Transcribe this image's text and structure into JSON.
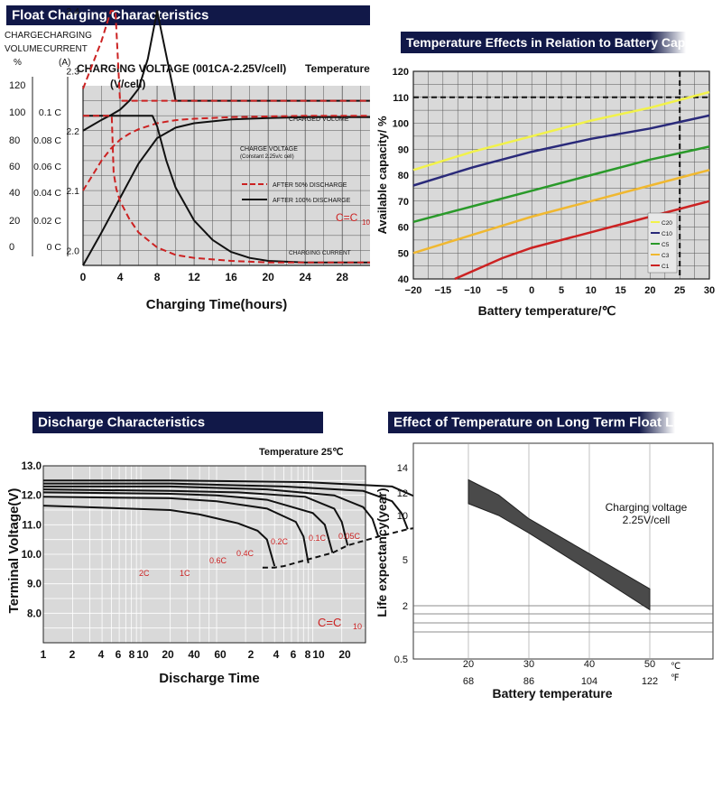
{
  "colors": {
    "header_bg": "#111848",
    "header_text": "#ffffff",
    "plot_bg": "#d9d9d9",
    "grid": "#555555",
    "red": "#cc2222",
    "black": "#111111"
  },
  "chart_data": [
    {
      "id": "float",
      "type": "line",
      "title": "Float Charging Characteristics",
      "xlabel": "Charging  Time(hours)",
      "xticks": [
        "0",
        "4",
        "8",
        "12",
        "16",
        "20",
        "24",
        "28"
      ],
      "xlim": [
        0,
        31
      ],
      "col1_header": [
        "CHARGE",
        "VOLUME",
        "%"
      ],
      "col1_ticks": [
        "120",
        "100",
        "80",
        "60",
        "40",
        "20",
        "0"
      ],
      "col2_header": [
        "CHARGING",
        "CURRENT",
        "(A)"
      ],
      "col2_ticks": [
        "0.1 C",
        "0.08 C",
        "0.06 C",
        "0.04 C",
        "0.02 C",
        "0 C"
      ],
      "col3_ticks": [
        "2.4",
        "2.3",
        "2.2",
        "2.1",
        "2.0"
      ],
      "voltage_title": "CHARGING VOLTAGE  (001CA-2.25V/cell)",
      "voltage_unit": "(V/cell)",
      "temperature_label": "Temperature",
      "labels": {
        "charged_volume": "CHARGED VOLUME",
        "charge_voltage": "CHARGE VOLTAGE",
        "charge_voltage_sub": "(Constant 2.25v/c cell)",
        "charging_current": "CHARGING CURRENT",
        "formula": "C=C",
        "formula_sub": "10"
      },
      "legend": [
        {
          "name": "AFTER 50% DISCHARGE",
          "style": "dashed",
          "color": "#cc2222"
        },
        {
          "name": "AFTER 100% DISCHARGE",
          "style": "solid",
          "color": "#111111"
        }
      ],
      "units": "curves in hours vs. charge volume (%) / voltage (V/cell)",
      "series": [
        {
          "name": "charged volume (100% discharge)",
          "style": "solid",
          "x": [
            0,
            2,
            4,
            6,
            8,
            10,
            12,
            16,
            20,
            24,
            28,
            31
          ],
          "y": [
            0,
            22,
            45,
            68,
            85,
            92,
            95,
            97.5,
            98.5,
            99,
            99,
            99
          ]
        },
        {
          "name": "charged volume (50% discharge)",
          "style": "dashed",
          "x": [
            0,
            1,
            2,
            3,
            4,
            5,
            6,
            8,
            10,
            12,
            16,
            20,
            24,
            28,
            31
          ],
          "y": [
            50,
            60,
            70,
            78,
            84,
            88,
            91,
            95,
            97,
            98,
            99,
            99.5,
            100,
            100,
            100
          ]
        },
        {
          "name": "charging voltage (100% discharge)",
          "style": "solid",
          "x": [
            0,
            1,
            2,
            3,
            4,
            5,
            6,
            7,
            8,
            10,
            31
          ],
          "y": [
            2.2,
            2.209,
            2.218,
            2.226,
            2.235,
            2.25,
            2.27,
            2.32,
            2.4,
            2.25,
            2.25
          ]
        },
        {
          "name": "charging voltage (50% discharge)",
          "style": "dashed",
          "x": [
            0,
            1,
            2,
            3,
            3.5,
            4,
            8,
            31
          ],
          "y": [
            2.27,
            2.31,
            2.35,
            2.4,
            2.4,
            2.25,
            2.25,
            2.25
          ]
        },
        {
          "name": "charging current (100% discharge)",
          "style": "solid",
          "x": [
            0,
            7.5,
            8,
            9,
            10,
            12,
            14,
            16,
            18,
            20,
            24,
            28,
            31
          ],
          "y": [
            100,
            100,
            93,
            70,
            52,
            30,
            17,
            9,
            5,
            3,
            2,
            2,
            2
          ]
        },
        {
          "name": "charging current (50% discharge)",
          "style": "dashed",
          "x": [
            0,
            3.1,
            3.3,
            3.6,
            4,
            5,
            6,
            8,
            10,
            12,
            16,
            20,
            31
          ],
          "y": [
            100,
            100,
            62,
            51,
            43,
            31,
            22,
            12,
            7,
            5,
            3,
            2,
            2
          ]
        }
      ]
    },
    {
      "id": "temperature",
      "type": "line",
      "title": "Temperature Effects in Relation to Battery Capacity",
      "xlabel": "Battery   temperature/℃",
      "ylabel": "Available  capacity/ %",
      "xticks": [
        "−20",
        "−15",
        "−10",
        "−5",
        "0",
        "5",
        "10",
        "15",
        "20",
        "25",
        "30"
      ],
      "yticks": [
        "120",
        "110",
        "100",
        "90",
        "80",
        "70",
        "60",
        "50",
        "40"
      ],
      "xlim": [
        -20,
        30
      ],
      "ylim": [
        40,
        120
      ],
      "reference": {
        "x": 25,
        "y": 110
      },
      "series": [
        {
          "name": "C20",
          "color": "#f2f24a",
          "x": [
            -20,
            -10,
            0,
            10,
            20,
            30
          ],
          "y": [
            82,
            89,
            95,
            101,
            106,
            112
          ]
        },
        {
          "name": "C10",
          "color": "#2a2a7a",
          "x": [
            -20,
            -10,
            0,
            10,
            20,
            30
          ],
          "y": [
            76,
            83,
            89,
            94,
            98,
            103
          ]
        },
        {
          "name": "C5",
          "color": "#2a9a2a",
          "x": [
            -20,
            -10,
            0,
            10,
            20,
            30
          ],
          "y": [
            62,
            68,
            74,
            80,
            86,
            91
          ]
        },
        {
          "name": "C3",
          "color": "#f0b830",
          "x": [
            -20,
            -10,
            0,
            10,
            20,
            30
          ],
          "y": [
            50,
            57,
            64,
            70,
            76,
            82
          ]
        },
        {
          "name": "C1",
          "color": "#cc2222",
          "x": [
            -13,
            -5,
            0,
            10,
            20,
            30
          ],
          "y": [
            40,
            48,
            52,
            58,
            64,
            70
          ]
        }
      ]
    },
    {
      "id": "discharge",
      "type": "line",
      "title": "Discharge  Characteristics",
      "xlabel": "Discharge  Time",
      "ylabel": "Terminal Voltage(V)",
      "xticks": [
        "1",
        "2",
        "4",
        "6",
        "8",
        "10",
        "20",
        "40",
        "60",
        "2",
        "4",
        "6",
        "8",
        "10",
        "20"
      ],
      "yticks": [
        "13.0",
        "12.0",
        "11.0",
        "10.0",
        "9.0",
        "8.0"
      ],
      "temperature_label": "Temperature 25℃",
      "formula": "C=C",
      "formula_sub": "10",
      "ylim": [
        7.0,
        13.0
      ],
      "units": "x in minutes, voltage in V",
      "series": [
        {
          "name": "2C",
          "x": [
            1,
            20,
            40,
            100,
            160,
            200,
            240
          ],
          "y": [
            11.65,
            11.5,
            11.35,
            11.05,
            10.8,
            10.5,
            9.6
          ]
        },
        {
          "name": "1C",
          "x": [
            1,
            20,
            60,
            200,
            400,
            480,
            540
          ],
          "y": [
            11.95,
            11.9,
            11.8,
            11.55,
            11.1,
            10.6,
            9.7
          ]
        },
        {
          "name": "0.6C",
          "x": [
            1,
            20,
            60,
            200,
            600,
            800,
            960
          ],
          "y": [
            12.1,
            12.05,
            12.0,
            11.85,
            11.4,
            11.0,
            10.05
          ]
        },
        {
          "name": "0.4C",
          "x": [
            1,
            20,
            100,
            500,
            1000,
            1200,
            1380
          ],
          "y": [
            12.2,
            12.15,
            12.1,
            11.95,
            11.55,
            11.1,
            10.3
          ]
        },
        {
          "name": "0.2C",
          "x": [
            1,
            20,
            200,
            1000,
            2000,
            2500,
            2880
          ],
          "y": [
            12.3,
            12.3,
            12.2,
            12.0,
            11.6,
            11.2,
            10.6
          ]
        },
        {
          "name": "0.1C",
          "x": [
            1,
            20,
            300,
            2000,
            4000,
            5000,
            5820
          ],
          "y": [
            12.4,
            12.4,
            12.3,
            12.15,
            11.8,
            11.4,
            10.85
          ]
        },
        {
          "name": "0.05C",
          "x": [
            1,
            20,
            500,
            4000,
            7000,
            9000,
            11100
          ],
          "y": [
            12.5,
            12.5,
            12.45,
            12.3,
            11.95,
            11.6,
            11.0
          ]
        }
      ],
      "end_voltage_curve": {
        "style": "dashed",
        "x": [
          180,
          240,
          300,
          500,
          960,
          1380,
          2880,
          5820,
          11100
        ],
        "y": [
          9.55,
          9.55,
          9.6,
          9.8,
          10.05,
          10.3,
          10.6,
          10.85,
          11.0
        ]
      }
    },
    {
      "id": "floatlife",
      "type": "area",
      "title": "Effect of Temperature on Long Term Float Life",
      "xlabel": "Battery  temperature",
      "ylabel": "Life  expectancy(year)",
      "xticks_c": [
        "20",
        "30",
        "40",
        "50"
      ],
      "xticks_f": [
        "68",
        "86",
        "104",
        "122"
      ],
      "unit_c": "℃",
      "unit_f": "℉",
      "yticks": [
        "14",
        "12",
        "10",
        "5",
        "2",
        "0.5"
      ],
      "annotation": [
        "Charging voltage",
        "2.25V/cell"
      ],
      "band_upper": {
        "x": [
          20,
          25,
          30,
          40,
          50
        ],
        "y": [
          13.0,
          11.8,
          9.5,
          5.5,
          2.8
        ]
      },
      "band_lower": {
        "x": [
          20,
          25,
          30,
          40,
          50
        ],
        "y": [
          11.0,
          10.0,
          7.6,
          4.0,
          1.8
        ]
      }
    }
  ]
}
